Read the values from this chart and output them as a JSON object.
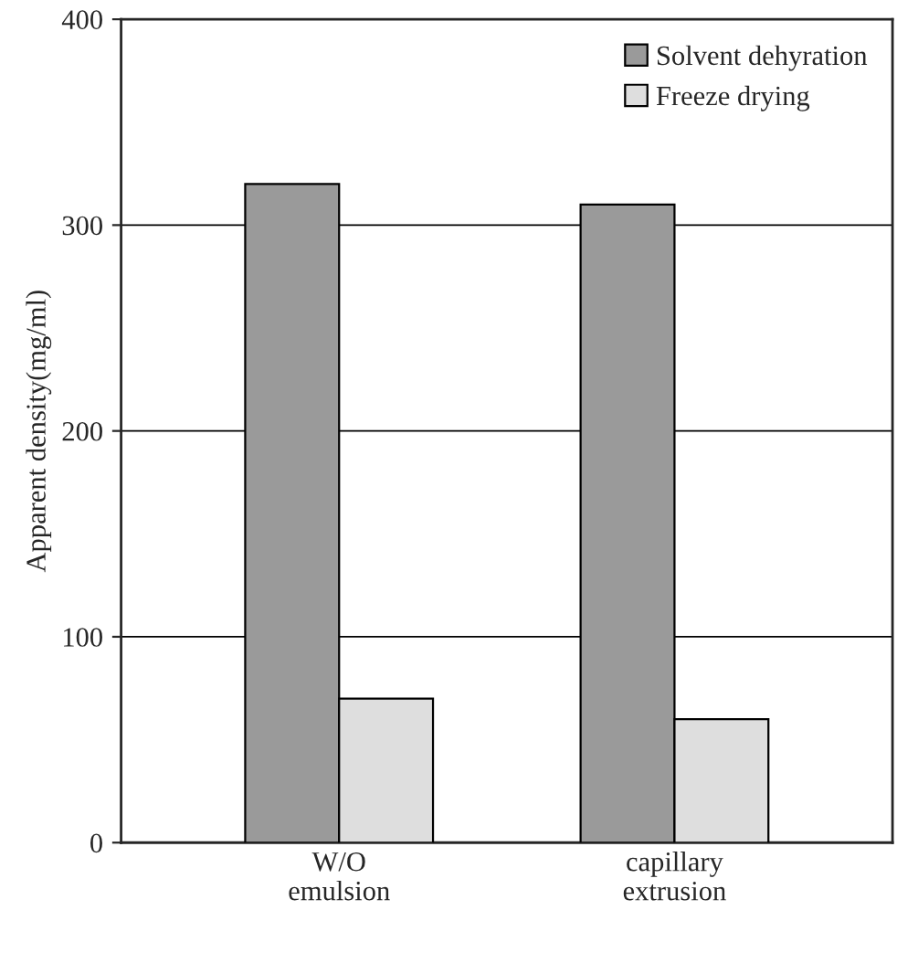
{
  "chart_data": {
    "type": "bar",
    "ylabel": "Apparent density(mg/ml)",
    "categories": [
      "W/O\nemulsion",
      "capillary\nextrusion"
    ],
    "series": [
      {
        "name": "Solvent dehyration",
        "color": "#9a9a9a",
        "values": [
          320,
          310
        ]
      },
      {
        "name": "Freeze drying",
        "color": "#dedede",
        "values": [
          70,
          60
        ]
      }
    ],
    "ylim": [
      0,
      400
    ],
    "yticks": [
      0,
      100,
      200,
      300,
      400
    ],
    "grid": "y",
    "legend": "top right"
  }
}
